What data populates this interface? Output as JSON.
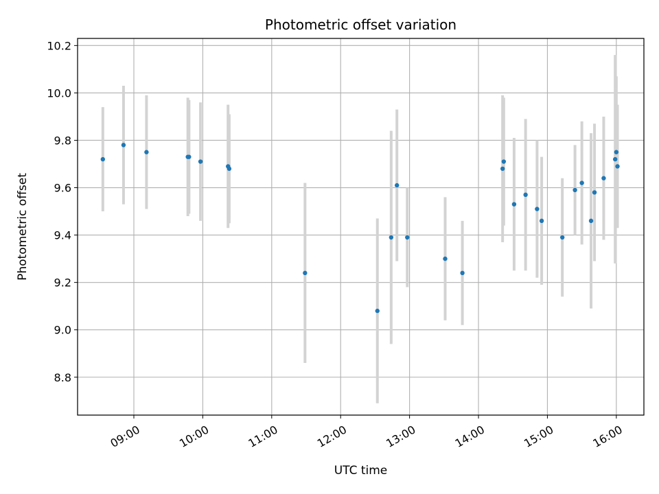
{
  "chart_data": {
    "type": "scatter",
    "title": "Photometric offset variation",
    "xlabel": "UTC time",
    "ylabel": "Photometric offset",
    "x_ticks": [
      "09:00",
      "10:00",
      "11:00",
      "12:00",
      "13:00",
      "14:00",
      "15:00",
      "16:00"
    ],
    "y_ticks": [
      "8.8",
      "9.0",
      "9.2",
      "9.4",
      "9.6",
      "9.8",
      "10.0",
      "10.2"
    ],
    "xlim": [
      "08:11",
      "16:24"
    ],
    "ylim": [
      8.64,
      10.23
    ],
    "grid": true,
    "colors": {
      "marker": "#1f77b4",
      "errorbar": "#d3d3d3",
      "grid": "#b0b0b0"
    },
    "points": [
      {
        "time": "08:33",
        "y": 9.72,
        "yerr": 0.22
      },
      {
        "time": "08:51",
        "y": 9.78,
        "yerr": 0.25
      },
      {
        "time": "09:11",
        "y": 9.75,
        "yerr": 0.24
      },
      {
        "time": "09:47",
        "y": 9.73,
        "yerr": 0.25
      },
      {
        "time": "09:48",
        "y": 9.73,
        "yerr": 0.24
      },
      {
        "time": "09:58",
        "y": 9.71,
        "yerr": 0.25
      },
      {
        "time": "10:22",
        "y": 9.69,
        "yerr": 0.26
      },
      {
        "time": "10:23",
        "y": 9.68,
        "yerr": 0.23
      },
      {
        "time": "11:29",
        "y": 9.24,
        "yerr": 0.38
      },
      {
        "time": "12:32",
        "y": 9.08,
        "yerr": 0.39
      },
      {
        "time": "12:44",
        "y": 9.39,
        "yerr": 0.45
      },
      {
        "time": "12:49",
        "y": 9.61,
        "yerr": 0.32
      },
      {
        "time": "12:58",
        "y": 9.39,
        "yerr": 0.21
      },
      {
        "time": "13:31",
        "y": 9.3,
        "yerr": 0.26
      },
      {
        "time": "13:46",
        "y": 9.24,
        "yerr": 0.22
      },
      {
        "time": "14:21",
        "y": 9.68,
        "yerr": 0.31
      },
      {
        "time": "14:22",
        "y": 9.71,
        "yerr": 0.27
      },
      {
        "time": "14:31",
        "y": 9.53,
        "yerr": 0.28
      },
      {
        "time": "14:41",
        "y": 9.57,
        "yerr": 0.32
      },
      {
        "time": "14:51",
        "y": 9.51,
        "yerr": 0.29
      },
      {
        "time": "14:55",
        "y": 9.46,
        "yerr": 0.27
      },
      {
        "time": "15:13",
        "y": 9.39,
        "yerr": 0.25
      },
      {
        "time": "15:24",
        "y": 9.59,
        "yerr": 0.19
      },
      {
        "time": "15:30",
        "y": 9.62,
        "yerr": 0.26
      },
      {
        "time": "15:38",
        "y": 9.46,
        "yerr": 0.37
      },
      {
        "time": "15:41",
        "y": 9.58,
        "yerr": 0.29
      },
      {
        "time": "15:49",
        "y": 9.64,
        "yerr": 0.26
      },
      {
        "time": "15:59",
        "y": 9.72,
        "yerr": 0.44
      },
      {
        "time": "16:00",
        "y": 9.75,
        "yerr": 0.32
      },
      {
        "time": "16:01",
        "y": 9.69,
        "yerr": 0.26
      }
    ]
  }
}
